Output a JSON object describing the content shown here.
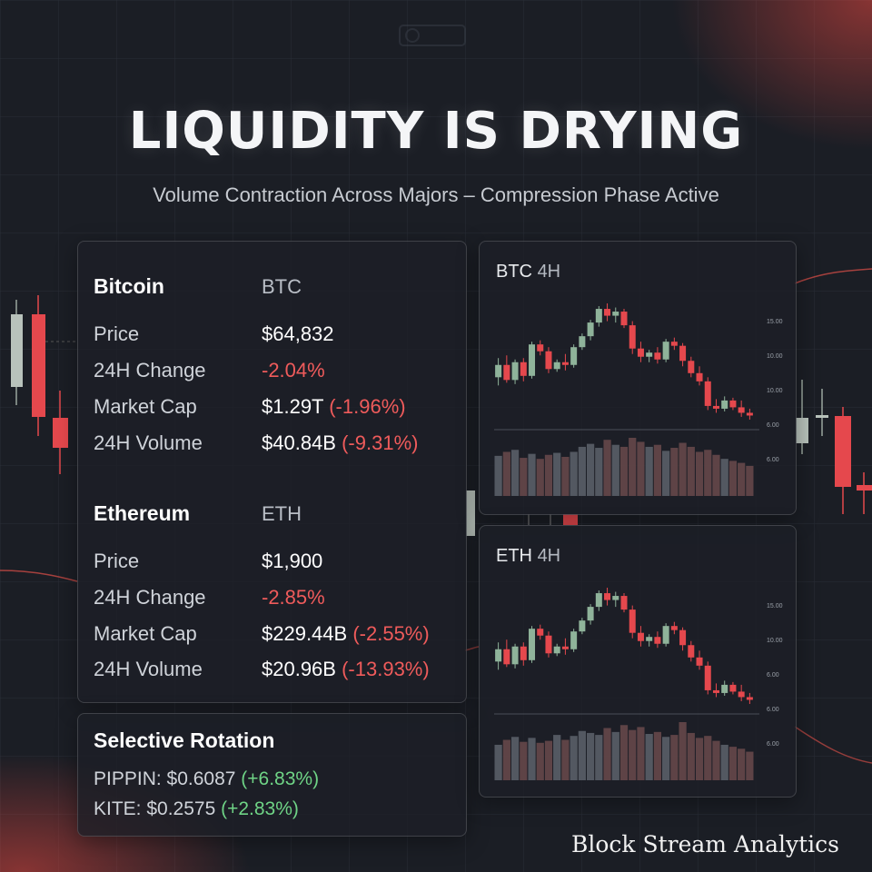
{
  "headline": "LIQUIDITY IS DRYING",
  "subheadline": "Volume Contraction Across Majors – Compression Phase Active",
  "coins": [
    {
      "name": "Bitcoin",
      "symbol": "BTC",
      "rows": [
        {
          "label": "Price",
          "value": "$64,832",
          "change": ""
        },
        {
          "label": "24H Change",
          "value": "",
          "change": "-2.04%"
        },
        {
          "label": "Market Cap",
          "value": "$1.29T",
          "change": "(-1.96%)"
        },
        {
          "label": "24H Volume",
          "value": "$40.84B",
          "change": "(-9.31%)"
        }
      ]
    },
    {
      "name": "Ethereum",
      "symbol": "ETH",
      "rows": [
        {
          "label": "Price",
          "value": "$1,900",
          "change": ""
        },
        {
          "label": "24H Change",
          "value": "",
          "change": "-2.85%"
        },
        {
          "label": "Market Cap",
          "value": "$229.44B",
          "change": "(-2.55%)"
        },
        {
          "label": "24H Volume",
          "value": "$20.96B",
          "change": "(-13.93%)"
        }
      ]
    }
  ],
  "rotation": {
    "title": "Selective Rotation",
    "items": [
      {
        "label": "PIPPIN: $0.6087",
        "change": "(+6.83%)"
      },
      {
        "label": "KITE: $0.2575",
        "change": "(+2.83%)"
      }
    ]
  },
  "colors": {
    "bull": "#8fb39a",
    "bear": "#e5484d",
    "volume": "#5a5f68",
    "accent_red": "#ef5b5b",
    "accent_green": "#6fd486"
  },
  "chart_data": [
    {
      "type": "candlestick",
      "symbol": "BTC",
      "timeframe": "4H",
      "y_ticks": [
        "15.00",
        "10.00",
        "10.00",
        "6.00",
        "6.00"
      ],
      "candles": [
        {
          "o": 12.2,
          "h": 13.6,
          "l": 11.6,
          "c": 13.1
        },
        {
          "o": 13.1,
          "h": 13.8,
          "l": 11.8,
          "c": 12.0
        },
        {
          "o": 12.0,
          "h": 13.5,
          "l": 11.7,
          "c": 13.3
        },
        {
          "o": 13.3,
          "h": 13.6,
          "l": 11.9,
          "c": 12.3
        },
        {
          "o": 12.3,
          "h": 14.8,
          "l": 12.1,
          "c": 14.6
        },
        {
          "o": 14.6,
          "h": 14.9,
          "l": 13.8,
          "c": 14.1
        },
        {
          "o": 14.1,
          "h": 14.4,
          "l": 12.5,
          "c": 12.8
        },
        {
          "o": 12.8,
          "h": 13.5,
          "l": 12.6,
          "c": 13.3
        },
        {
          "o": 13.3,
          "h": 13.9,
          "l": 12.7,
          "c": 13.1
        },
        {
          "o": 13.1,
          "h": 14.6,
          "l": 12.9,
          "c": 14.4
        },
        {
          "o": 14.4,
          "h": 15.4,
          "l": 14.2,
          "c": 15.2
        },
        {
          "o": 15.2,
          "h": 16.4,
          "l": 14.9,
          "c": 16.2
        },
        {
          "o": 16.2,
          "h": 17.4,
          "l": 15.9,
          "c": 17.2
        },
        {
          "o": 17.2,
          "h": 17.6,
          "l": 16.3,
          "c": 16.7
        },
        {
          "o": 16.7,
          "h": 17.3,
          "l": 16.2,
          "c": 17.0
        },
        {
          "o": 17.0,
          "h": 17.2,
          "l": 15.8,
          "c": 16.0
        },
        {
          "o": 16.0,
          "h": 16.3,
          "l": 13.9,
          "c": 14.3
        },
        {
          "o": 14.3,
          "h": 14.8,
          "l": 13.3,
          "c": 13.7
        },
        {
          "o": 13.7,
          "h": 14.2,
          "l": 13.3,
          "c": 14.0
        },
        {
          "o": 14.0,
          "h": 14.4,
          "l": 13.2,
          "c": 13.5
        },
        {
          "o": 13.5,
          "h": 15.0,
          "l": 13.3,
          "c": 14.8
        },
        {
          "o": 14.8,
          "h": 15.1,
          "l": 14.2,
          "c": 14.5
        },
        {
          "o": 14.5,
          "h": 14.7,
          "l": 13.0,
          "c": 13.4
        },
        {
          "o": 13.4,
          "h": 13.7,
          "l": 12.2,
          "c": 12.5
        },
        {
          "o": 12.5,
          "h": 13.0,
          "l": 11.6,
          "c": 11.9
        },
        {
          "o": 11.9,
          "h": 12.2,
          "l": 9.8,
          "c": 10.1
        },
        {
          "o": 10.1,
          "h": 10.6,
          "l": 9.6,
          "c": 9.9
        },
        {
          "o": 9.9,
          "h": 10.8,
          "l": 9.7,
          "c": 10.5
        },
        {
          "o": 10.5,
          "h": 10.7,
          "l": 9.8,
          "c": 10.0
        },
        {
          "o": 10.0,
          "h": 10.5,
          "l": 9.3,
          "c": 9.6
        },
        {
          "o": 9.6,
          "h": 9.9,
          "l": 9.1,
          "c": 9.4
        }
      ],
      "volume": [
        4,
        4.4,
        4.6,
        3.8,
        4.2,
        3.7,
        4.1,
        4.3,
        3.9,
        4.4,
        4.9,
        5.2,
        4.8,
        5.6,
        5.1,
        4.9,
        5.8,
        5.4,
        4.9,
        5.1,
        4.5,
        4.8,
        5.3,
        4.9,
        4.4,
        4.6,
        4.1,
        3.7,
        3.5,
        3.3,
        3.0
      ]
    },
    {
      "type": "candlestick",
      "symbol": "ETH",
      "timeframe": "4H",
      "y_ticks": [
        "15.00",
        "10.00",
        "6.00",
        "6.00",
        "6.00"
      ],
      "candles": [
        {
          "o": 12.2,
          "h": 13.6,
          "l": 11.6,
          "c": 13.1
        },
        {
          "o": 13.1,
          "h": 13.8,
          "l": 11.8,
          "c": 12.0
        },
        {
          "o": 12.0,
          "h": 13.5,
          "l": 11.7,
          "c": 13.3
        },
        {
          "o": 13.3,
          "h": 13.6,
          "l": 11.9,
          "c": 12.3
        },
        {
          "o": 12.3,
          "h": 14.8,
          "l": 12.1,
          "c": 14.6
        },
        {
          "o": 14.6,
          "h": 14.9,
          "l": 13.8,
          "c": 14.1
        },
        {
          "o": 14.1,
          "h": 14.4,
          "l": 12.5,
          "c": 12.8
        },
        {
          "o": 12.8,
          "h": 13.5,
          "l": 12.6,
          "c": 13.3
        },
        {
          "o": 13.3,
          "h": 13.9,
          "l": 12.7,
          "c": 13.1
        },
        {
          "o": 13.1,
          "h": 14.6,
          "l": 12.9,
          "c": 14.4
        },
        {
          "o": 14.4,
          "h": 15.4,
          "l": 14.2,
          "c": 15.2
        },
        {
          "o": 15.2,
          "h": 16.4,
          "l": 14.9,
          "c": 16.2
        },
        {
          "o": 16.2,
          "h": 17.4,
          "l": 15.9,
          "c": 17.2
        },
        {
          "o": 17.2,
          "h": 17.6,
          "l": 16.3,
          "c": 16.7
        },
        {
          "o": 16.7,
          "h": 17.3,
          "l": 16.2,
          "c": 17.0
        },
        {
          "o": 17.0,
          "h": 17.2,
          "l": 15.8,
          "c": 16.0
        },
        {
          "o": 16.0,
          "h": 16.3,
          "l": 13.9,
          "c": 14.3
        },
        {
          "o": 14.3,
          "h": 14.8,
          "l": 13.3,
          "c": 13.7
        },
        {
          "o": 13.7,
          "h": 14.2,
          "l": 13.3,
          "c": 14.0
        },
        {
          "o": 14.0,
          "h": 14.4,
          "l": 13.2,
          "c": 13.5
        },
        {
          "o": 13.5,
          "h": 15.0,
          "l": 13.3,
          "c": 14.8
        },
        {
          "o": 14.8,
          "h": 15.1,
          "l": 14.2,
          "c": 14.5
        },
        {
          "o": 14.5,
          "h": 14.7,
          "l": 13.0,
          "c": 13.4
        },
        {
          "o": 13.4,
          "h": 13.7,
          "l": 12.2,
          "c": 12.5
        },
        {
          "o": 12.5,
          "h": 13.0,
          "l": 11.6,
          "c": 11.9
        },
        {
          "o": 11.9,
          "h": 12.2,
          "l": 9.8,
          "c": 10.1
        },
        {
          "o": 10.1,
          "h": 10.6,
          "l": 9.6,
          "c": 9.9
        },
        {
          "o": 9.9,
          "h": 10.8,
          "l": 9.7,
          "c": 10.5
        },
        {
          "o": 10.5,
          "h": 10.7,
          "l": 9.8,
          "c": 10.0
        },
        {
          "o": 10.0,
          "h": 10.5,
          "l": 9.3,
          "c": 9.6
        },
        {
          "o": 9.6,
          "h": 9.9,
          "l": 9.1,
          "c": 9.4
        }
      ],
      "volume": [
        3.6,
        4.1,
        4.4,
        3.9,
        4.3,
        3.8,
        4.0,
        4.6,
        4.1,
        4.5,
        5.0,
        4.8,
        4.6,
        5.3,
        4.9,
        5.6,
        5.1,
        5.4,
        4.7,
        4.9,
        4.4,
        4.6,
        5.9,
        4.8,
        4.3,
        4.5,
        4.0,
        3.6,
        3.4,
        3.2,
        2.9
      ]
    }
  ],
  "brand": "Block Stream Analytics"
}
